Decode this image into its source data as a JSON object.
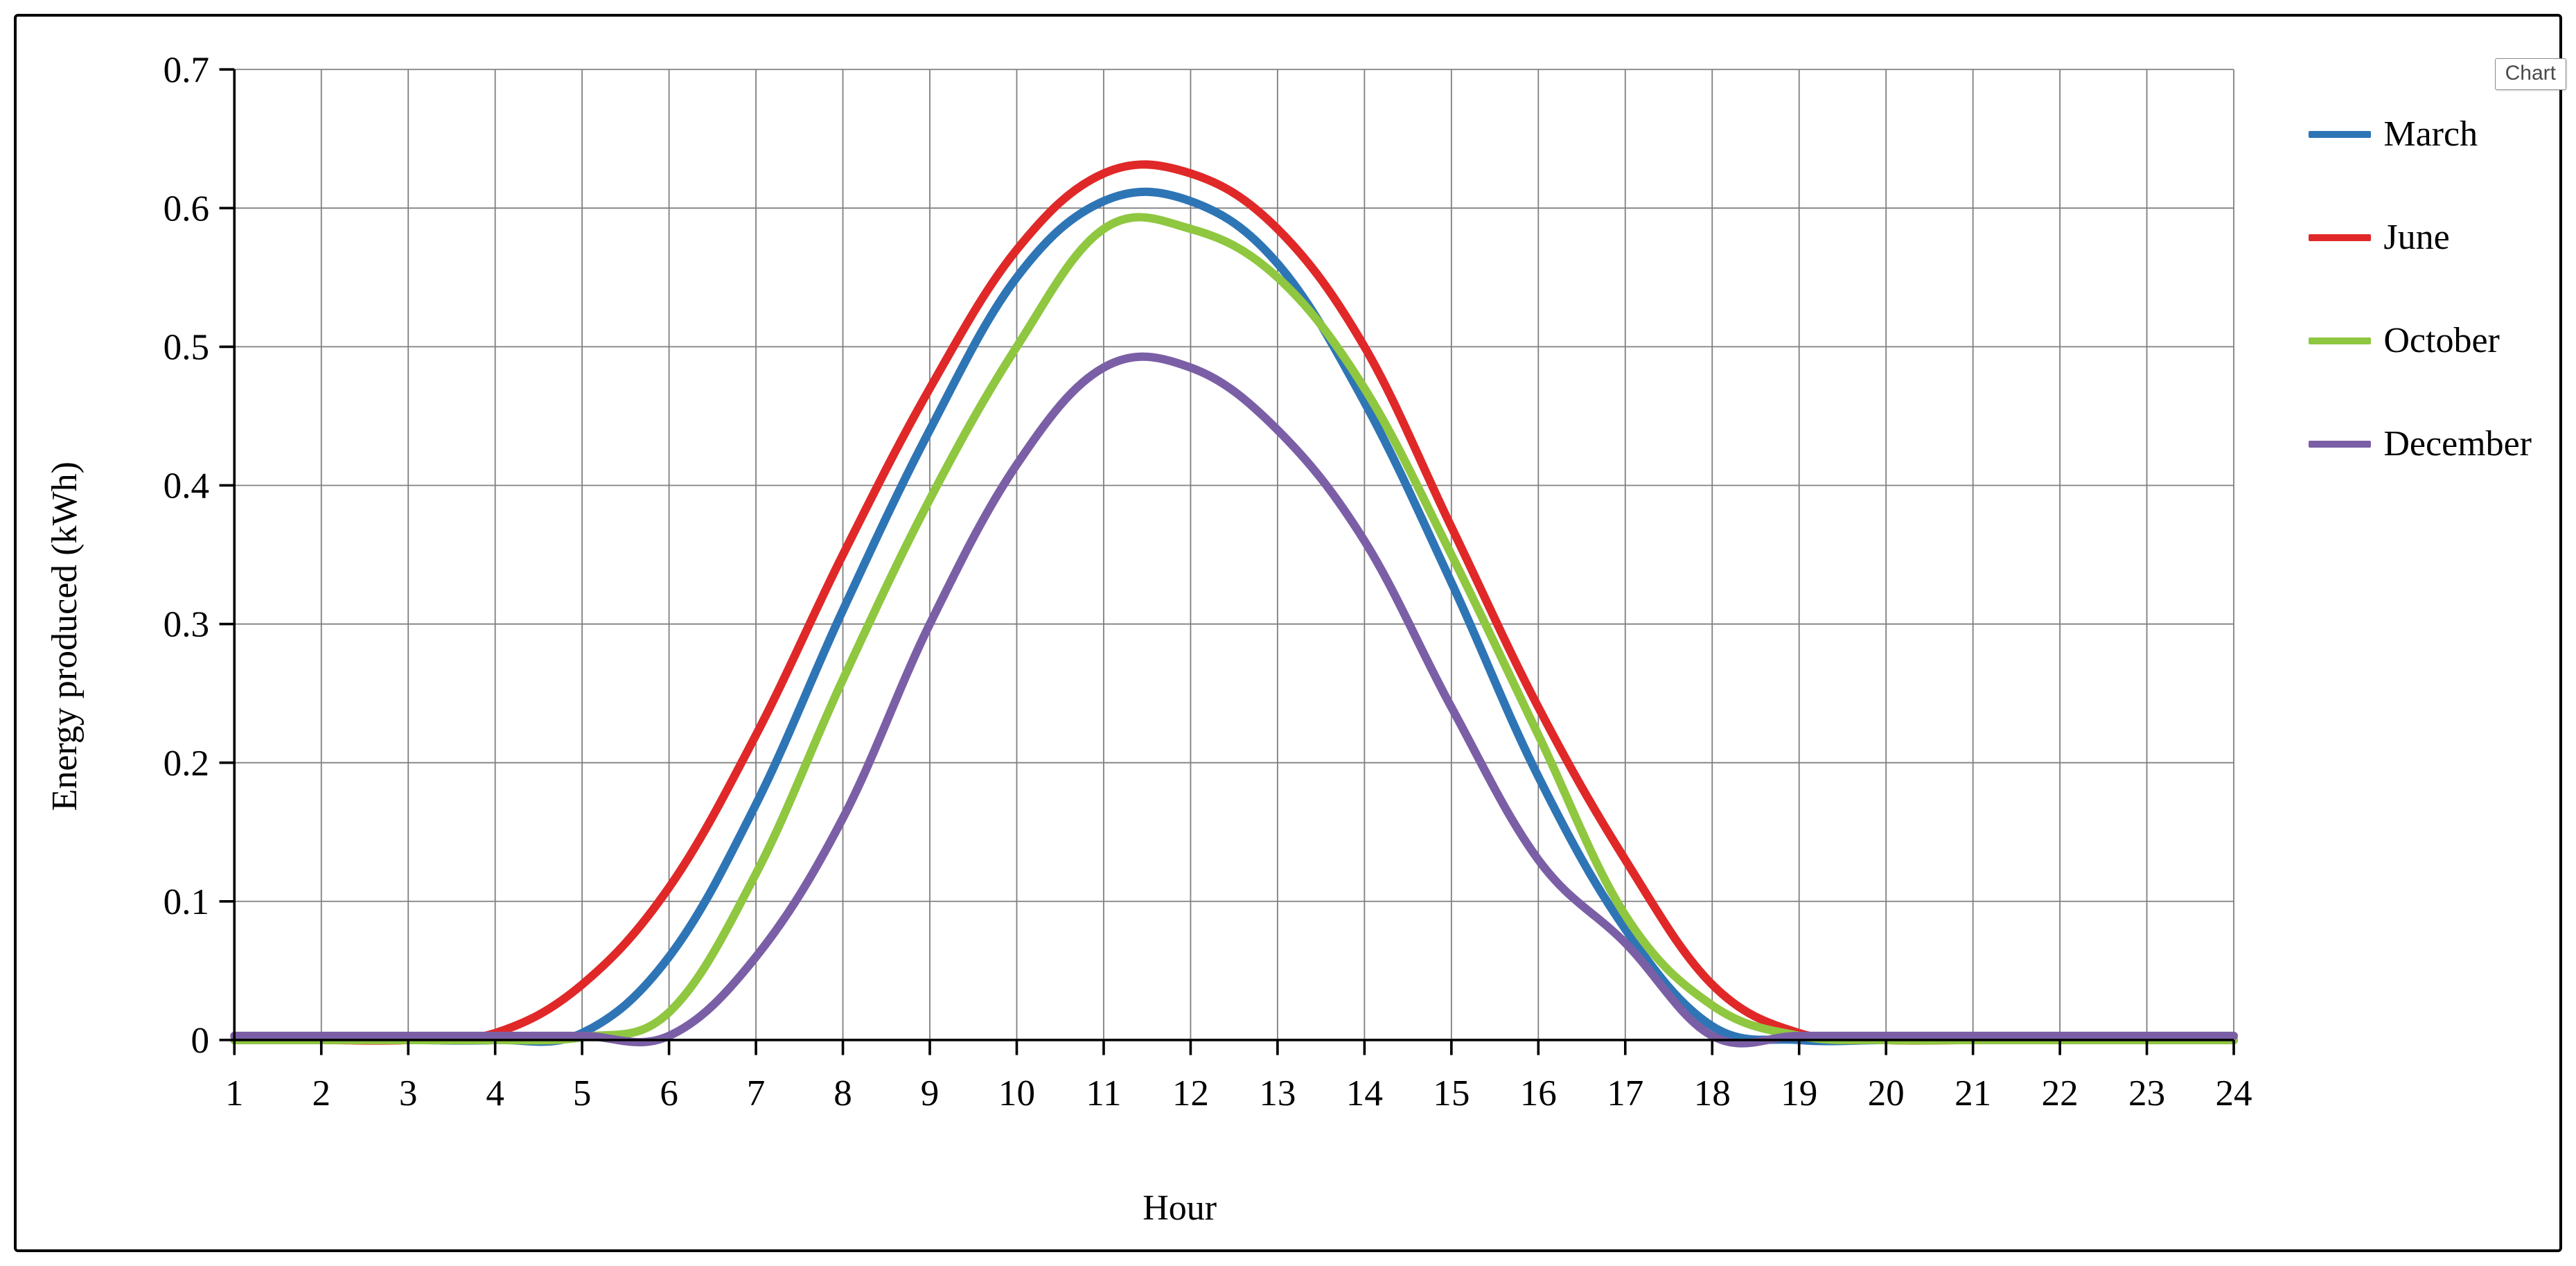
{
  "chart": {
    "type": "line",
    "xlabel": "Hour",
    "ylabel": "Energy produced (kWh)",
    "x_categories": [
      1,
      2,
      3,
      4,
      5,
      6,
      7,
      8,
      9,
      10,
      11,
      12,
      13,
      14,
      15,
      16,
      17,
      18,
      19,
      20,
      21,
      22,
      23,
      24
    ],
    "ylim": [
      0,
      0.7
    ],
    "ytick_step": 0.1,
    "yticks": [
      0,
      0.1,
      0.2,
      0.3,
      0.4,
      0.5,
      0.6,
      0.7
    ],
    "background_color": "#ffffff",
    "grid_color": "#808080",
    "grid_width": 1.5,
    "axis_color": "#000000",
    "axis_width": 3,
    "line_width": 10,
    "label_fontsize": 52,
    "tick_fontsize": 44,
    "font_family": "Palatino Linotype",
    "series": [
      {
        "name": "March",
        "color": "#2e75b6",
        "values": [
          0,
          0,
          0,
          0,
          0.005,
          0.06,
          0.17,
          0.31,
          0.44,
          0.55,
          0.605,
          0.605,
          0.56,
          0.46,
          0.33,
          0.19,
          0.08,
          0.01,
          0,
          0,
          0,
          0,
          0,
          0
        ]
      },
      {
        "name": "June",
        "color": "#e02828",
        "values": [
          0,
          0,
          0,
          0.005,
          0.04,
          0.11,
          0.22,
          0.35,
          0.47,
          0.57,
          0.625,
          0.625,
          0.585,
          0.5,
          0.37,
          0.24,
          0.13,
          0.04,
          0.005,
          0,
          0,
          0,
          0,
          0
        ]
      },
      {
        "name": "October",
        "color": "#8fc740",
        "values": [
          0,
          0,
          0,
          0,
          0.002,
          0.02,
          0.12,
          0.26,
          0.39,
          0.5,
          0.585,
          0.585,
          0.55,
          0.47,
          0.35,
          0.22,
          0.09,
          0.025,
          0.003,
          0,
          0,
          0,
          0,
          0
        ]
      },
      {
        "name": "December",
        "color": "#7b5fa6",
        "values": [
          0.003,
          0.003,
          0.003,
          0.003,
          0.003,
          0.003,
          0.06,
          0.16,
          0.3,
          0.415,
          0.485,
          0.485,
          0.44,
          0.36,
          0.24,
          0.13,
          0.07,
          0.003,
          0.003,
          0.003,
          0.003,
          0.003,
          0.003,
          0.003
        ]
      }
    ]
  },
  "tooltip": {
    "text": "Chart"
  }
}
